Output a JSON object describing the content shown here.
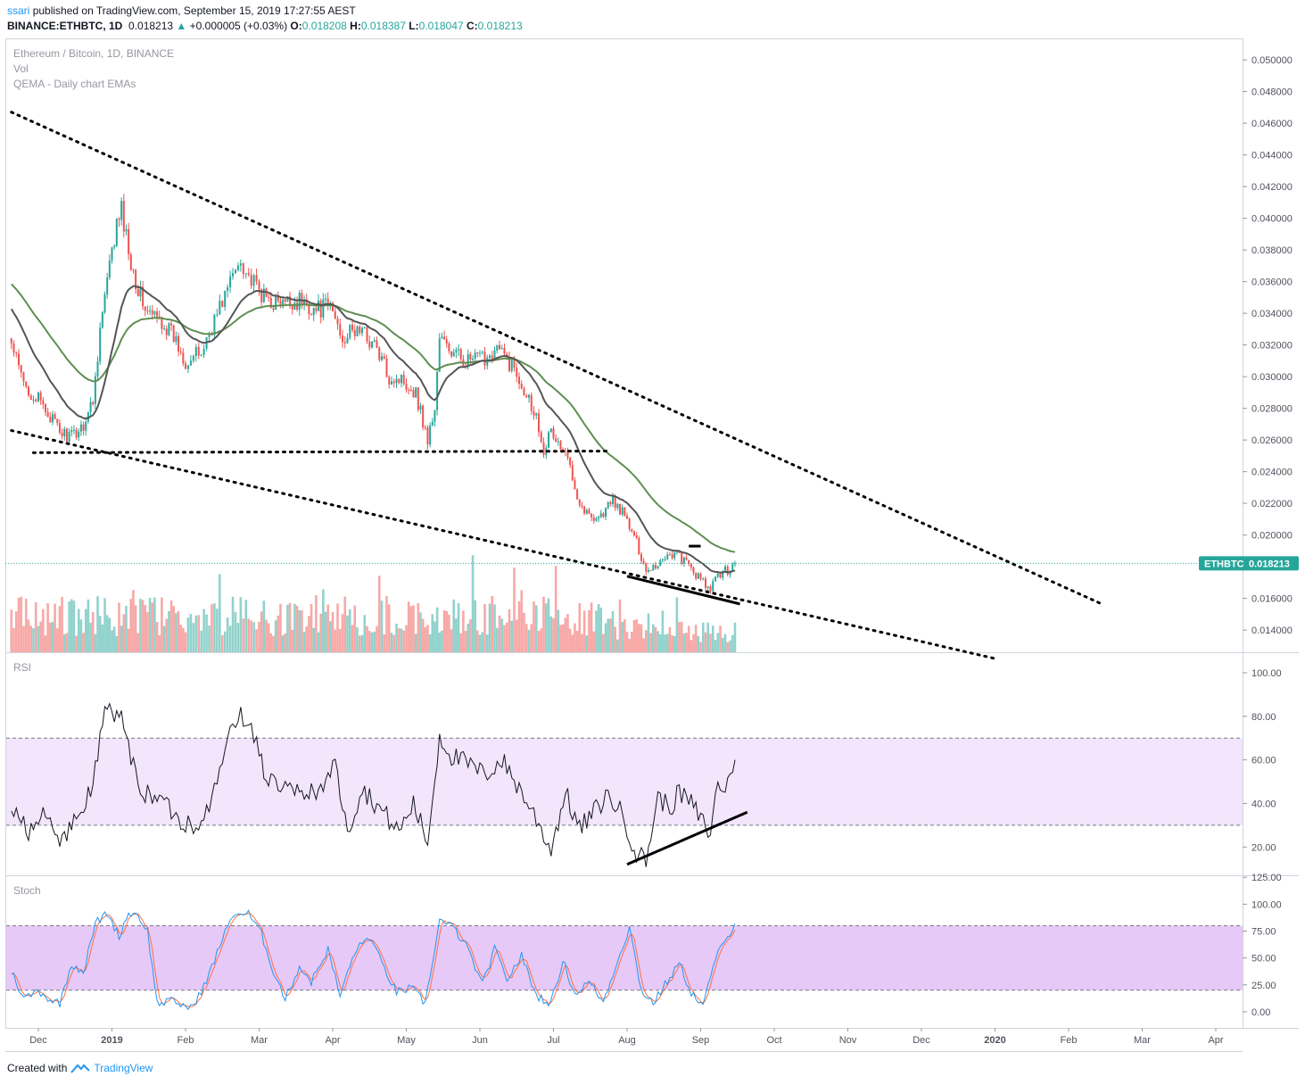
{
  "header": {
    "user": "ssari",
    "published": "published on TradingView.com, September 15, 2019 17:27:55 AEST",
    "symbol": "BINANCE:ETHBTC, 1D",
    "last": "0.018213",
    "change": "+0.000005 (+0.03%)",
    "open_label": "O:",
    "open": "0.018208",
    "high_label": "H:",
    "high": "0.018387",
    "low_label": "L:",
    "low": "0.018047",
    "close_label": "C:",
    "close": "0.018213"
  },
  "panes": {
    "main_title": "Ethereum / Bitcoin, 1D, BINANCE",
    "vol_title": "Vol",
    "qema_title": "QEMA - Daily chart EMAs",
    "rsi_title": "RSI",
    "stoch_title": "Stoch"
  },
  "price_tag": {
    "symbol": "ETHBTC",
    "value": "0.018213",
    "color": "#26a69a"
  },
  "footer": {
    "created_with": "Created with",
    "brand": "TradingView"
  },
  "colors": {
    "up": "#26a69a",
    "down": "#ef5350",
    "ema_fast": "#555555",
    "ema_slow": "#5e8f52",
    "rsi_band": "#f3e5fb",
    "stoch_band": "#e6c9f7",
    "stoch_k": "#2196f3",
    "stoch_d": "#ff7043"
  },
  "chart_data": [
    {
      "type": "candlestick",
      "title": "Ethereum / Bitcoin, 1D, BINANCE",
      "x_ticks": [
        "Dec",
        "2019",
        "Feb",
        "Mar",
        "Apr",
        "May",
        "Jun",
        "Jul",
        "Aug",
        "Sep",
        "Oct",
        "Nov",
        "Dec",
        "2020",
        "Feb",
        "Mar",
        "Apr"
      ],
      "y_ticks": [
        "0.014000",
        "0.016000",
        "0.018000",
        "0.020000",
        "0.022000",
        "0.024000",
        "0.026000",
        "0.028000",
        "0.030000",
        "0.032000",
        "0.034000",
        "0.036000",
        "0.038000",
        "0.040000",
        "0.042000",
        "0.044000",
        "0.046000",
        "0.048000",
        "0.050000"
      ],
      "ylim": [
        0.0126,
        0.0513
      ],
      "close_anchors": [
        [
          "2018-11-20",
          0.032
        ],
        [
          "2018-11-25",
          0.0295
        ],
        [
          "2018-12-01",
          0.0285
        ],
        [
          "2018-12-06",
          0.0275
        ],
        [
          "2018-12-10",
          0.0265
        ],
        [
          "2018-12-15",
          0.0262
        ],
        [
          "2018-12-20",
          0.027
        ],
        [
          "2018-12-24",
          0.0285
        ],
        [
          "2018-12-27",
          0.033
        ],
        [
          "2018-12-30",
          0.036
        ],
        [
          "2019-01-03",
          0.0395
        ],
        [
          "2019-01-05",
          0.0405
        ],
        [
          "2019-01-08",
          0.038
        ],
        [
          "2019-01-12",
          0.0355
        ],
        [
          "2019-01-16",
          0.034
        ],
        [
          "2019-01-22",
          0.0335
        ],
        [
          "2019-01-27",
          0.0325
        ],
        [
          "2019-02-01",
          0.031
        ],
        [
          "2019-02-07",
          0.0315
        ],
        [
          "2019-02-13",
          0.034
        ],
        [
          "2019-02-18",
          0.036
        ],
        [
          "2019-02-22",
          0.0375
        ],
        [
          "2019-02-26",
          0.036
        ],
        [
          "2019-03-03",
          0.035
        ],
        [
          "2019-03-10",
          0.0345
        ],
        [
          "2019-03-18",
          0.0348
        ],
        [
          "2019-03-25",
          0.0342
        ],
        [
          "2019-03-31",
          0.0345
        ],
        [
          "2019-04-05",
          0.0325
        ],
        [
          "2019-04-12",
          0.033
        ],
        [
          "2019-04-18",
          0.032
        ],
        [
          "2019-04-24",
          0.03
        ],
        [
          "2019-04-30",
          0.0298
        ],
        [
          "2019-05-05",
          0.029
        ],
        [
          "2019-05-10",
          0.026
        ],
        [
          "2019-05-13",
          0.028
        ],
        [
          "2019-05-15",
          0.0325
        ],
        [
          "2019-05-20",
          0.0315
        ],
        [
          "2019-05-27",
          0.031
        ],
        [
          "2019-06-03",
          0.0312
        ],
        [
          "2019-06-08",
          0.0318
        ],
        [
          "2019-06-15",
          0.0305
        ],
        [
          "2019-06-20",
          0.029
        ],
        [
          "2019-06-24",
          0.0275
        ],
        [
          "2019-06-27",
          0.0255
        ],
        [
          "2019-06-30",
          0.0265
        ],
        [
          "2019-07-04",
          0.0255
        ],
        [
          "2019-07-08",
          0.0245
        ],
        [
          "2019-07-12",
          0.022
        ],
        [
          "2019-07-16",
          0.0212
        ],
        [
          "2019-07-21",
          0.0212
        ],
        [
          "2019-07-26",
          0.0222
        ],
        [
          "2019-07-31",
          0.0212
        ],
        [
          "2019-08-05",
          0.0195
        ],
        [
          "2019-08-09",
          0.0178
        ],
        [
          "2019-08-14",
          0.0182
        ],
        [
          "2019-08-18",
          0.0188
        ],
        [
          "2019-08-22",
          0.0188
        ],
        [
          "2019-08-26",
          0.0182
        ],
        [
          "2019-08-30",
          0.0175
        ],
        [
          "2019-09-03",
          0.0168
        ],
        [
          "2019-09-05",
          0.0165
        ],
        [
          "2019-09-08",
          0.0175
        ],
        [
          "2019-09-12",
          0.0178
        ],
        [
          "2019-09-15",
          0.018213
        ]
      ],
      "ema_fast_period": 20,
      "ema_slow_period": 50,
      "trendlines": [
        {
          "style": "dotted",
          "from": [
            "2018-11-20",
            0.0467
          ],
          "to": [
            "2020-02-14",
            0.01565
          ]
        },
        {
          "style": "dotted",
          "from": [
            "2018-11-20",
            0.0266
          ],
          "to": [
            "2020-01-01",
            0.0122
          ]
        },
        {
          "style": "dotted",
          "from": [
            "2018-11-29",
            0.0252
          ],
          "to": [
            "2019-07-24",
            0.0253
          ]
        },
        {
          "style": "solid",
          "from": [
            "2019-08-01",
            0.0174
          ],
          "to": [
            "2019-09-17",
            0.01565
          ]
        },
        {
          "style": "solid",
          "from": [
            "2019-08-27",
            0.0193
          ],
          "to": [
            "2019-09-01",
            0.0193
          ]
        }
      ]
    },
    {
      "type": "bar",
      "title": "Vol"
    },
    {
      "type": "line",
      "title": "RSI",
      "y_ticks": [
        "20.00",
        "40.00",
        "60.00",
        "80.00",
        "100.00"
      ],
      "ylim": [
        7,
        109
      ],
      "band": [
        30,
        70
      ],
      "anchors": [
        [
          "2018-11-20",
          40
        ],
        [
          "2018-11-27",
          28
        ],
        [
          "2018-12-04",
          35
        ],
        [
          "2018-12-10",
          22
        ],
        [
          "2018-12-17",
          33
        ],
        [
          "2018-12-23",
          45
        ],
        [
          "2018-12-27",
          70
        ],
        [
          "2018-12-29",
          86
        ],
        [
          "2019-01-02",
          78
        ],
        [
          "2019-01-05",
          82
        ],
        [
          "2019-01-09",
          60
        ],
        [
          "2019-01-14",
          45
        ],
        [
          "2019-01-22",
          42
        ],
        [
          "2019-01-30",
          32
        ],
        [
          "2019-02-05",
          30
        ],
        [
          "2019-02-12",
          45
        ],
        [
          "2019-02-16",
          65
        ],
        [
          "2019-02-21",
          81
        ],
        [
          "2019-02-26",
          75
        ],
        [
          "2019-03-04",
          52
        ],
        [
          "2019-03-12",
          46
        ],
        [
          "2019-03-20",
          44
        ],
        [
          "2019-03-28",
          48
        ],
        [
          "2019-04-02",
          58
        ],
        [
          "2019-04-07",
          27
        ],
        [
          "2019-04-13",
          47
        ],
        [
          "2019-04-20",
          38
        ],
        [
          "2019-04-28",
          27
        ],
        [
          "2019-05-04",
          40
        ],
        [
          "2019-05-10",
          22
        ],
        [
          "2019-05-15",
          71
        ],
        [
          "2019-05-20",
          62
        ],
        [
          "2019-05-27",
          58
        ],
        [
          "2019-06-03",
          53
        ],
        [
          "2019-06-10",
          60
        ],
        [
          "2019-06-17",
          47
        ],
        [
          "2019-06-23",
          35
        ],
        [
          "2019-06-30",
          19
        ],
        [
          "2019-07-06",
          45
        ],
        [
          "2019-07-12",
          28
        ],
        [
          "2019-07-18",
          36
        ],
        [
          "2019-07-24",
          44
        ],
        [
          "2019-07-30",
          35
        ],
        [
          "2019-08-05",
          17
        ],
        [
          "2019-08-09",
          14
        ],
        [
          "2019-08-14",
          43
        ],
        [
          "2019-08-19",
          38
        ],
        [
          "2019-08-23",
          45
        ],
        [
          "2019-08-28",
          40
        ],
        [
          "2019-09-02",
          31
        ],
        [
          "2019-09-05",
          26
        ],
        [
          "2019-09-08",
          50
        ],
        [
          "2019-09-11",
          46
        ],
        [
          "2019-09-15",
          60
        ]
      ],
      "trendlines": [
        {
          "style": "solid",
          "from": [
            "2019-08-01",
            12
          ],
          "to": [
            "2019-09-20",
            36
          ]
        }
      ]
    },
    {
      "type": "line",
      "title": "Stoch",
      "y_ticks": [
        "0.00",
        "25.00",
        "50.00",
        "75.00",
        "100.00",
        "125.00"
      ],
      "ylim": [
        -15,
        126
      ],
      "band": [
        20,
        80
      ],
      "anchors": [
        [
          "2018-11-20",
          38
        ],
        [
          "2018-11-25",
          12
        ],
        [
          "2018-12-01",
          20
        ],
        [
          "2018-12-06",
          11
        ],
        [
          "2018-12-10",
          8
        ],
        [
          "2018-12-15",
          45
        ],
        [
          "2018-12-20",
          37
        ],
        [
          "2018-12-25",
          82
        ],
        [
          "2018-12-30",
          92
        ],
        [
          "2019-01-04",
          70
        ],
        [
          "2019-01-08",
          92
        ],
        [
          "2019-01-12",
          90
        ],
        [
          "2019-01-16",
          75
        ],
        [
          "2019-01-20",
          8
        ],
        [
          "2019-01-27",
          10
        ],
        [
          "2019-02-03",
          3
        ],
        [
          "2019-02-09",
          28
        ],
        [
          "2019-02-13",
          55
        ],
        [
          "2019-02-19",
          91
        ],
        [
          "2019-02-25",
          91
        ],
        [
          "2019-03-02",
          72
        ],
        [
          "2019-03-07",
          38
        ],
        [
          "2019-03-12",
          12
        ],
        [
          "2019-03-18",
          42
        ],
        [
          "2019-03-23",
          28
        ],
        [
          "2019-03-30",
          58
        ],
        [
          "2019-04-04",
          15
        ],
        [
          "2019-04-10",
          56
        ],
        [
          "2019-04-16",
          70
        ],
        [
          "2019-04-21",
          45
        ],
        [
          "2019-04-27",
          18
        ],
        [
          "2019-05-03",
          22
        ],
        [
          "2019-05-09",
          8
        ],
        [
          "2019-05-15",
          85
        ],
        [
          "2019-05-21",
          78
        ],
        [
          "2019-05-27",
          58
        ],
        [
          "2019-06-02",
          25
        ],
        [
          "2019-06-07",
          58
        ],
        [
          "2019-06-12",
          30
        ],
        [
          "2019-06-18",
          52
        ],
        [
          "2019-06-24",
          15
        ],
        [
          "2019-06-30",
          8
        ],
        [
          "2019-07-05",
          48
        ],
        [
          "2019-07-10",
          16
        ],
        [
          "2019-07-16",
          28
        ],
        [
          "2019-07-22",
          9
        ],
        [
          "2019-07-28",
          48
        ],
        [
          "2019-08-02",
          78
        ],
        [
          "2019-08-07",
          20
        ],
        [
          "2019-08-12",
          8
        ],
        [
          "2019-08-17",
          25
        ],
        [
          "2019-08-23",
          45
        ],
        [
          "2019-08-28",
          18
        ],
        [
          "2019-09-02",
          5
        ],
        [
          "2019-09-07",
          50
        ],
        [
          "2019-09-12",
          68
        ],
        [
          "2019-09-15",
          85
        ]
      ]
    }
  ]
}
